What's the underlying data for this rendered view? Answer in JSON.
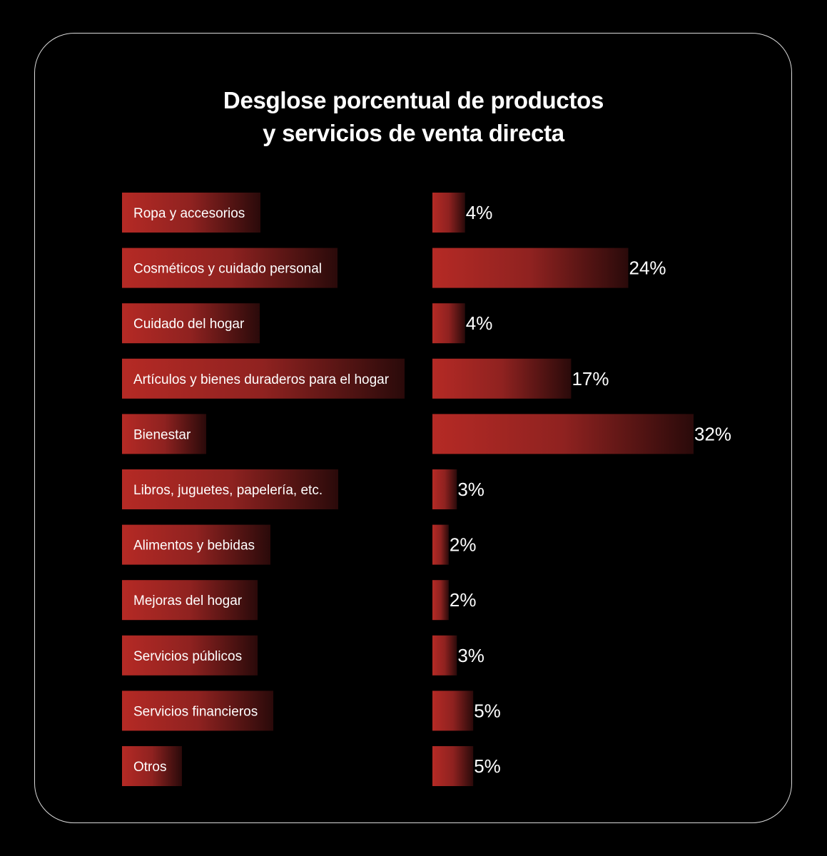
{
  "title": {
    "line1": "Desglose porcentual de productos",
    "line2": "y servicios de venta directa"
  },
  "colors": {
    "background": "#000000",
    "bar_red": "#b52a25",
    "border": "#d9d9d9",
    "text": "#ffffff"
  },
  "chart_data": {
    "type": "bar",
    "orientation": "horizontal",
    "title": "Desglose porcentual de productos y servicios de venta directa",
    "categories": [
      "Ropa y accesorios",
      "Cosméticos y cuidado personal",
      "Cuidado del hogar",
      "Artículos y bienes duraderos para el hogar",
      "Bienestar",
      "Libros, juguetes, papelería, etc.",
      "Alimentos y bebidas",
      "Mejoras del hogar",
      "Servicios públicos",
      "Servicios financieros",
      "Otros"
    ],
    "values": [
      4,
      24,
      4,
      17,
      32,
      3,
      2,
      2,
      3,
      5,
      5
    ],
    "value_labels": [
      "4%",
      "24%",
      "4%",
      "17%",
      "32%",
      "3%",
      "2%",
      "2%",
      "3%",
      "5%",
      "5%"
    ],
    "unit": "%",
    "xlim": [
      0,
      32
    ],
    "grid": false,
    "legend": "none"
  }
}
